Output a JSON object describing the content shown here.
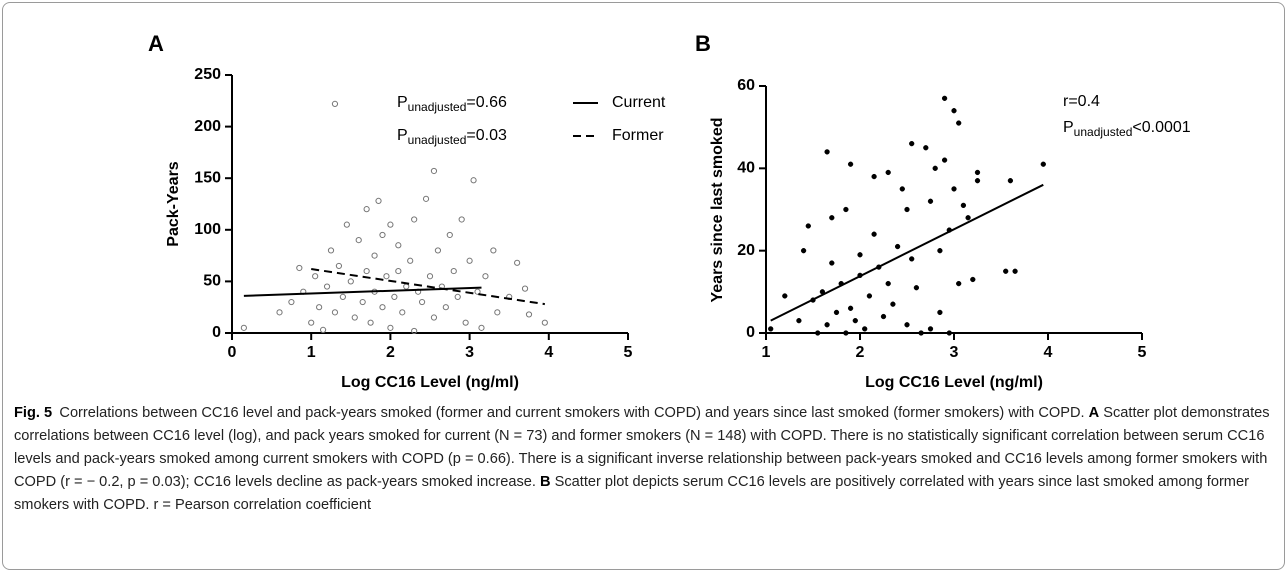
{
  "chart_data": [
    {
      "type": "scatter",
      "panel": "A",
      "x_label": "Log CC16 Level (ng/ml)",
      "y_label": "Pack-Years",
      "xlim": [
        0,
        5
      ],
      "xticks": [
        0,
        1,
        2,
        3,
        4,
        5
      ],
      "ylim": [
        0,
        250
      ],
      "yticks": [
        0,
        50,
        100,
        150,
        200,
        250
      ],
      "points": {
        "marker": "open",
        "color": "#777777",
        "x": [
          0.15,
          0.6,
          0.75,
          0.85,
          0.9,
          1.0,
          1.05,
          1.1,
          1.15,
          1.2,
          1.25,
          1.3,
          1.3,
          1.35,
          1.4,
          1.45,
          1.5,
          1.55,
          1.6,
          1.65,
          1.7,
          1.7,
          1.75,
          1.8,
          1.8,
          1.85,
          1.9,
          1.9,
          1.95,
          2.0,
          2.0,
          2.05,
          2.1,
          2.1,
          2.15,
          2.2,
          2.25,
          2.3,
          2.3,
          2.35,
          2.4,
          2.45,
          2.5,
          2.55,
          2.55,
          2.6,
          2.65,
          2.7,
          2.75,
          2.8,
          2.85,
          2.9,
          2.95,
          3.0,
          3.05,
          3.1,
          3.15,
          3.2,
          3.3,
          3.35,
          3.5,
          3.6,
          3.7,
          3.75,
          3.95
        ],
        "values": [
          5,
          20,
          30,
          63,
          40,
          10,
          55,
          25,
          3,
          45,
          80,
          222,
          20,
          65,
          35,
          105,
          50,
          15,
          90,
          30,
          120,
          60,
          10,
          75,
          40,
          128,
          25,
          95,
          55,
          105,
          5,
          35,
          85,
          60,
          20,
          45,
          70,
          2,
          110,
          40,
          30,
          130,
          55,
          15,
          157,
          80,
          45,
          25,
          95,
          60,
          35,
          110,
          10,
          70,
          148,
          40,
          5,
          55,
          80,
          20,
          35,
          68,
          43,
          18,
          10
        ]
      },
      "lines": [
        {
          "name": "Current",
          "style": "solid",
          "color": "#000000",
          "x": [
            0.15,
            3.15
          ],
          "values": [
            36,
            44
          ]
        },
        {
          "name": "Former",
          "style": "dashed",
          "color": "#000000",
          "x": [
            1.0,
            3.95
          ],
          "values": [
            62,
            28
          ]
        }
      ],
      "annotations": [
        {
          "main": "P",
          "sub": "unadjusted",
          "rest": "=0.66"
        },
        {
          "main": "P",
          "sub": "unadjusted",
          "rest": "=0.03"
        }
      ]
    },
    {
      "type": "scatter",
      "panel": "B",
      "x_label": "Log CC16 Level (ng/ml)",
      "y_label": "Years since last smoked",
      "xlim": [
        1,
        5
      ],
      "xticks": [
        1,
        2,
        3,
        4,
        5
      ],
      "ylim": [
        0,
        60
      ],
      "yticks": [
        0,
        20,
        40,
        60
      ],
      "points": {
        "marker": "filled",
        "color": "#000000",
        "x": [
          1.05,
          1.2,
          1.35,
          1.4,
          1.45,
          1.5,
          1.55,
          1.6,
          1.65,
          1.65,
          1.7,
          1.7,
          1.75,
          1.8,
          1.85,
          1.85,
          1.9,
          1.9,
          1.95,
          2.0,
          2.0,
          2.05,
          2.1,
          2.15,
          2.15,
          2.2,
          2.25,
          2.3,
          2.3,
          2.35,
          2.4,
          2.45,
          2.5,
          2.5,
          2.55,
          2.55,
          2.6,
          2.65,
          2.7,
          2.75,
          2.75,
          2.8,
          2.85,
          2.85,
          2.9,
          2.9,
          2.95,
          2.95,
          3.0,
          3.0,
          3.05,
          3.05,
          3.1,
          3.15,
          3.2,
          3.25,
          3.25,
          3.55,
          3.6,
          3.65,
          3.95
        ],
        "values": [
          1,
          9,
          3,
          20,
          26,
          8,
          0,
          10,
          44,
          2,
          28,
          17,
          5,
          12,
          30,
          0,
          41,
          6,
          3,
          19,
          14,
          1,
          9,
          38,
          24,
          16,
          4,
          39,
          12,
          7,
          21,
          35,
          30,
          2,
          46,
          18,
          11,
          0,
          45,
          32,
          1,
          40,
          20,
          5,
          57,
          42,
          25,
          0,
          54,
          35,
          51,
          12,
          31,
          28,
          13,
          39,
          37,
          15,
          37,
          15,
          41
        ]
      },
      "lines": [
        {
          "style": "solid",
          "color": "#000000",
          "x": [
            1.05,
            3.95
          ],
          "values": [
            3,
            36
          ]
        }
      ],
      "annotations": [
        {
          "main": "r=0.4"
        },
        {
          "main": "P",
          "sub": "unadjusted",
          "rest": "<0.0001"
        }
      ]
    }
  ],
  "caption": {
    "label": "Fig. 5",
    "text": "Correlations between CC16 level and pack-years smoked (former and current smokers with COPD) and years since last smoked (former smokers) with COPD.",
    "panels": [
      {
        "label": "A",
        "text": "Scatter plot demonstrates correlations between CC16 level (log), and pack years smoked for current (N = 73) and former smokers (N = 148) with COPD. There is no statistically significant correlation between serum CC16 levels and pack-years smoked among current smokers with COPD (p = 0.66). There is a significant inverse relationship between pack-years smoked and CC16 levels among former smokers with COPD (r = − 0.2, p = 0.03); CC16 levels decline as pack-years smoked increase."
      },
      {
        "label": "B",
        "text": "Scatter plot depicts serum CC16 levels are positively correlated with years since last smoked among former smokers with COPD. r = Pearson correlation coefficient"
      }
    ]
  }
}
